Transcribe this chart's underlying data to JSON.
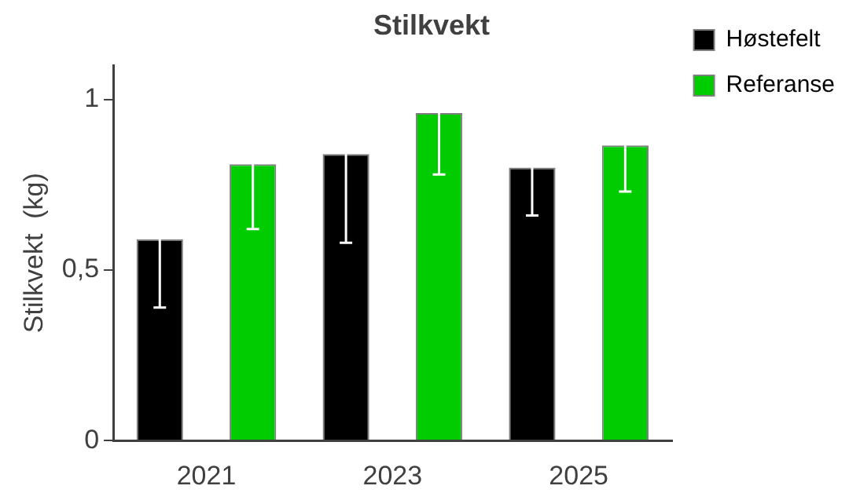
{
  "chart_data": {
    "type": "bar",
    "title": "Stilkvekt",
    "ylabel": "Stilkvekt  (kg)",
    "categories": [
      "2021",
      "2023",
      "2025"
    ],
    "series": [
      {
        "name": "Høstefelt",
        "color": "#000000",
        "values": [
          0.59,
          0.84,
          0.8
        ],
        "errors": [
          [
            0.39,
            0.59
          ],
          [
            0.58,
            0.84
          ],
          [
            0.66,
            0.8
          ]
        ]
      },
      {
        "name": "Referanse",
        "color": "#00cc00",
        "values": [
          0.81,
          0.96,
          0.865
        ],
        "errors": [
          [
            0.62,
            0.81
          ],
          [
            0.78,
            0.96
          ],
          [
            0.73,
            0.865
          ]
        ]
      }
    ],
    "ylim": [
      0,
      1.1
    ],
    "yticks": [
      0,
      {
        "value": 0.5,
        "label": "0,5"
      },
      1
    ],
    "grid": false,
    "legend": "top right"
  }
}
